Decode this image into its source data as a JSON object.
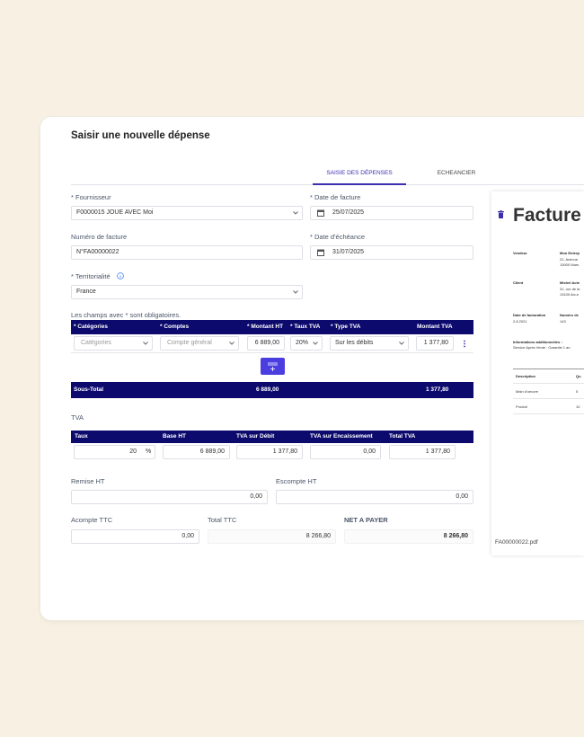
{
  "header": {
    "title": "Saisir une nouvelle dépense"
  },
  "tabs": {
    "active": "SAISIE DES DÉPENSES",
    "other": "ECHEANCIER"
  },
  "form": {
    "fournisseur": {
      "label": "* Fournisseur",
      "value": "F0000015 JOUE AVEC Moi"
    },
    "date_facture": {
      "label": "* Date de facture",
      "value": "25/07/2025"
    },
    "numero_facture": {
      "label": "Numéro de facture",
      "value": "N°FA00000022"
    },
    "date_echeance": {
      "label": "* Date d'échéance",
      "value": "31/07/2025"
    },
    "territorialite": {
      "label": "* Territorialité",
      "value": "France"
    },
    "required_note": "Les champs avec * sont obligatoires."
  },
  "lines_table": {
    "headers": [
      "* Catégories",
      "* Comptes",
      "* Montant HT",
      "* Taux TVA",
      "* Type TVA",
      "Montant TVA"
    ],
    "row": [
      "Catégories",
      "Compte général",
      "6 889,00",
      "20%",
      "Sur les débits",
      "1 377,80"
    ],
    "subtotal": [
      "Sous-Total",
      "6 889,00",
      "1 377,80"
    ]
  },
  "tva": {
    "title": "TVA",
    "headers": [
      "Taux",
      "Base HT",
      "TVA sur Débit",
      "TVA sur Encaissement",
      "Total TVA"
    ],
    "row": [
      "20",
      "%",
      "6 889,00",
      "1 377,80",
      "0,00",
      "1 377,80"
    ]
  },
  "totals": {
    "remise_ht": {
      "label": "Remise HT",
      "value": "0,00"
    },
    "escompte_ht": {
      "label": "Escompte HT",
      "value": "0,00"
    },
    "acompte_ttc": {
      "label": "Acompte TTC",
      "value": "0,00"
    },
    "total_ttc": {
      "label": "Total TTC",
      "value": "8 266,80"
    },
    "net_a_payer": {
      "label": "NET A PAYER",
      "value": "8 266,80"
    }
  },
  "preview": {
    "title": "Facture",
    "vendeur": {
      "label": "Vendeur",
      "lines": [
        "Mon Entrep",
        "22, Avenue",
        "13000 Mars"
      ]
    },
    "client": {
      "label": "Client",
      "lines": [
        "Michel Acte",
        "31, rue de la",
        "13100 Aix-e"
      ]
    },
    "date_label": "Date de facturation",
    "date": "2.8.2021",
    "numero_label": "Numéro de",
    "numero": "143",
    "info_label": "Informations additionnelles :",
    "info": "Service Après Vente : Garantie 1 an",
    "items_headers": [
      "Description",
      "Qu"
    ],
    "items": [
      [
        "Main d'oeuvre",
        "5"
      ],
      [
        "Produit",
        "10"
      ]
    ],
    "filename": "FA00000022.pdf"
  }
}
